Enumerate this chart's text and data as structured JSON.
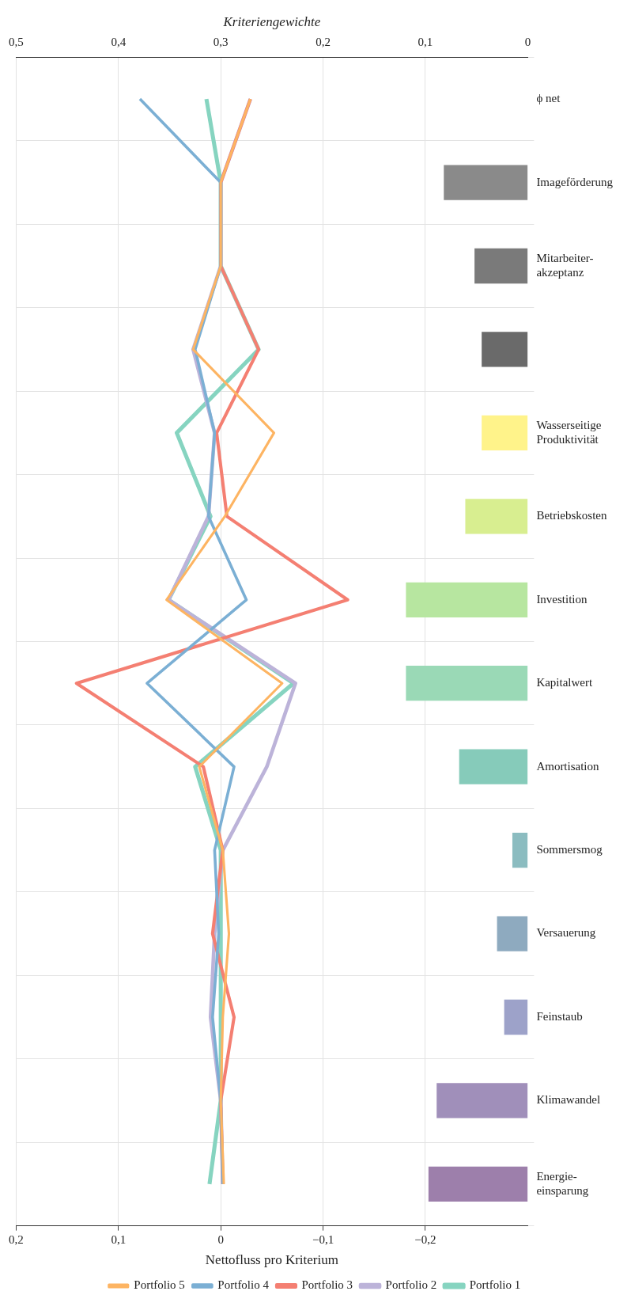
{
  "chart_data": {
    "type": "line",
    "orientation": "horizontal",
    "xlabel": "Nettofluss pro Kriterium",
    "x2label": "Kriteriengewichte",
    "categories": [
      "ϕ net",
      "Imageförderung",
      "Mitarbeiter-\nakzeptanz",
      null,
      "Wasserseitige\nProduktivität",
      "Betriebskosten",
      "Investition",
      "Kapitalwert",
      "Amortisation",
      "Sommersmog",
      "Versauerung",
      "Feinstaub",
      "Klimawandel",
      "Energie-\neinsparung"
    ],
    "xlim": [
      0.2,
      -0.3
    ],
    "xticks": [
      {
        "value": 0.2,
        "label": "0,2"
      },
      {
        "value": 0.1,
        "label": "0,1"
      },
      0,
      {
        "value": -0.1,
        "label": "−0,1"
      },
      {
        "value": -0.2,
        "label": "−0,2"
      }
    ],
    "x2lim": [
      0.5,
      0
    ],
    "x2ticks": [
      {
        "value": 0.5,
        "label": "0,5"
      },
      {
        "value": 0.4,
        "label": "0,4"
      },
      {
        "value": 0.3,
        "label": "0,3"
      },
      {
        "value": 0.2,
        "label": "0,2"
      },
      {
        "value": 0.1,
        "label": "0,1"
      },
      0
    ],
    "grid": true,
    "legend": "bottom",
    "series": [
      {
        "type": "bar",
        "axis": "x2",
        "values": [
          null,
          0.082,
          0.052,
          0.045,
          0.045,
          0.061,
          0.119,
          0.119,
          0.067,
          0.015,
          0.03,
          0.023,
          0.089,
          0.097
        ],
        "colors": [
          null,
          "#8a8a8a",
          "#7a7a7a",
          "#6a6a6a",
          "#fff38a",
          "#d8ee90",
          "#b7e6a0",
          "#9ad9b6",
          "#86cbba",
          "#8bbcc0",
          "#8eaabf",
          "#9da2c9",
          "#a08fba",
          "#9d7fab"
        ]
      },
      {
        "name": "Portfolio 1",
        "color": "#86d4c0",
        "values": [
          0.014,
          0,
          0,
          -0.037,
          0.043,
          0.01,
          0.051,
          -0.071,
          0.025,
          0,
          0,
          0,
          0,
          0.011
        ]
      },
      {
        "name": "Portfolio 2",
        "color": "#bcb3d9",
        "values": [
          -0.029,
          0,
          0,
          0.027,
          0.006,
          0.012,
          0.051,
          -0.073,
          -0.045,
          -0.002,
          0.006,
          0.01,
          0,
          -0.002
        ]
      },
      {
        "name": "Portfolio 3",
        "color": "#f47f72",
        "values": [
          -0.029,
          0,
          0,
          -0.037,
          0.004,
          -0.006,
          -0.124,
          0.141,
          0.017,
          -0.002,
          0.008,
          -0.013,
          0,
          -0.002
        ]
      },
      {
        "name": "Portfolio 4",
        "color": "#7bafd4",
        "values": [
          0.079,
          0,
          0,
          0.025,
          0.006,
          0.012,
          -0.025,
          0.072,
          -0.013,
          0.006,
          0.002,
          0.008,
          0,
          -0.002
        ]
      },
      {
        "name": "Portfolio 5",
        "color": "#fdb462",
        "values": [
          -0.029,
          0,
          0,
          0.027,
          -0.052,
          -0.004,
          0.053,
          -0.06,
          0.021,
          -0.002,
          -0.008,
          -0.002,
          0,
          -0.003
        ]
      }
    ]
  }
}
